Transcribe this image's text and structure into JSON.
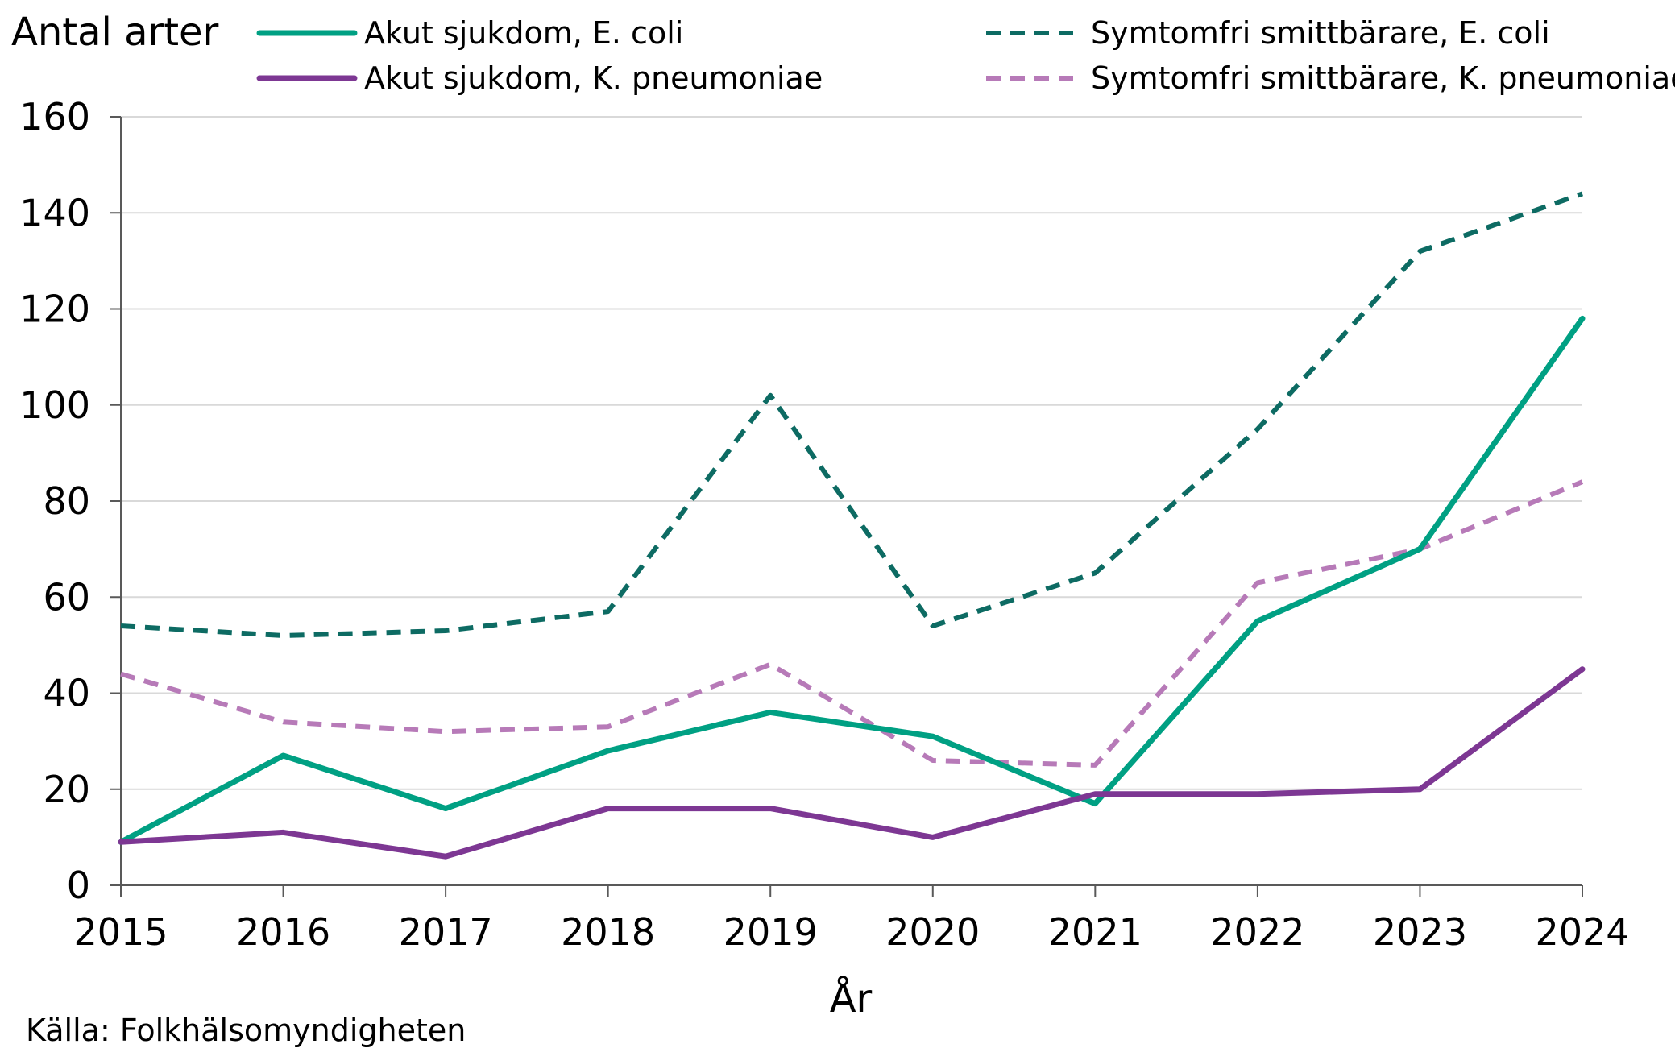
{
  "chart_data": {
    "type": "line",
    "title": "",
    "ylabel": "Antal arter",
    "xlabel": "År",
    "source": "Källa: Folkhälsomyndigheten",
    "ylim": [
      0,
      160
    ],
    "yticks": [
      0,
      20,
      40,
      60,
      80,
      100,
      120,
      140,
      160
    ],
    "x": [
      "2015",
      "2016",
      "2017",
      "2018",
      "2019",
      "2020",
      "2021",
      "2022",
      "2023",
      "2024"
    ],
    "grid": "horizontal",
    "legend_position": "top",
    "series": [
      {
        "name": "Akut sjukdom, E. coli",
        "color": "#00a083",
        "dash": false,
        "values": [
          9,
          27,
          16,
          28,
          36,
          31,
          17,
          55,
          70,
          118
        ]
      },
      {
        "name": "Akut sjukdom, K. pneumoniae",
        "color": "#7d3793",
        "dash": false,
        "values": [
          9,
          11,
          6,
          16,
          16,
          10,
          19,
          19,
          20,
          45
        ]
      },
      {
        "name": "Symtomfri smittbärare, E. coli",
        "color": "#0d6b63",
        "dash": true,
        "values": [
          54,
          52,
          53,
          57,
          102,
          54,
          65,
          95,
          132,
          144
        ]
      },
      {
        "name": "Symtomfri smittbärare, K. pneumoniae",
        "color": "#b77ab8",
        "dash": true,
        "values": [
          44,
          34,
          32,
          33,
          46,
          26,
          25,
          63,
          70,
          84
        ]
      }
    ]
  }
}
